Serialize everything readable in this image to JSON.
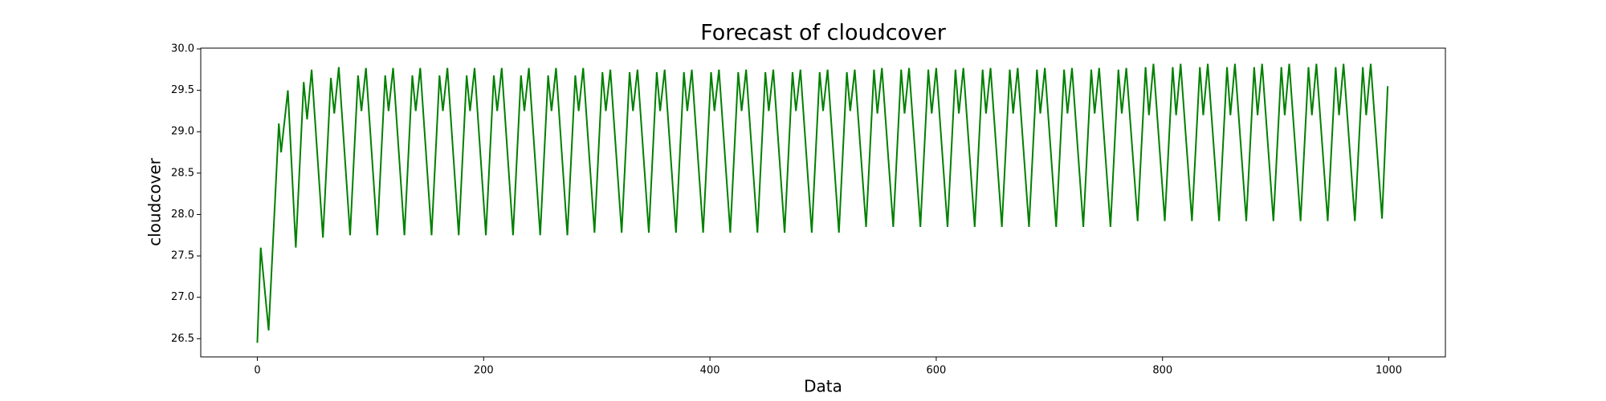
{
  "chart_data": {
    "type": "line",
    "title": "Forecast of cloudcover",
    "x_label": "Data",
    "y_label": "cloudcover",
    "xlim": [
      -50,
      1050
    ],
    "ylim": [
      26.28,
      30.01
    ],
    "xticks": [
      0,
      200,
      400,
      600,
      800,
      1000
    ],
    "yticks": [
      26.5,
      {
        "value": 27,
        "label": "27.0"
      },
      27.5,
      {
        "value": 28,
        "label": "28.0"
      },
      28.5,
      {
        "value": 29,
        "label": "29.0"
      },
      29.5,
      {
        "value": 30,
        "label": "30.0"
      }
    ],
    "x": [
      0,
      3,
      10,
      19,
      21,
      27,
      34,
      41,
      44,
      48,
      58,
      65,
      68,
      72,
      82,
      89,
      92,
      96,
      106,
      113,
      116,
      120,
      130,
      137,
      140,
      144,
      154,
      161,
      164,
      168,
      178,
      185,
      188,
      192,
      202,
      209,
      212,
      216,
      226,
      233,
      236,
      240,
      250,
      257,
      260,
      264,
      274,
      281,
      284,
      288,
      298,
      305,
      308,
      312,
      322,
      329,
      332,
      336,
      346,
      353,
      356,
      360,
      370,
      377,
      380,
      384,
      394,
      401,
      404,
      408,
      418,
      425,
      428,
      432,
      442,
      449,
      452,
      456,
      466,
      473,
      476,
      480,
      490,
      497,
      500,
      504,
      514,
      521,
      524,
      528,
      538,
      545,
      548,
      552,
      562,
      569,
      572,
      576,
      586,
      593,
      596,
      600,
      610,
      617,
      620,
      624,
      634,
      641,
      644,
      648,
      658,
      665,
      668,
      672,
      682,
      689,
      692,
      696,
      706,
      713,
      716,
      720,
      730,
      737,
      740,
      744,
      754,
      761,
      764,
      768,
      778,
      785,
      788,
      792,
      802,
      809,
      812,
      816,
      826,
      833,
      836,
      840,
      850,
      857,
      860,
      864,
      874,
      881,
      884,
      888,
      898,
      905,
      908,
      912,
      922,
      929,
      932,
      936,
      946,
      953,
      956,
      960,
      970,
      977,
      980,
      984,
      994,
      999
    ],
    "series": [
      {
        "name": "cloudcover",
        "color": "#008000",
        "values": [
          26.45,
          27.6,
          26.6,
          29.1,
          28.75,
          29.5,
          27.6,
          29.6,
          29.15,
          29.75,
          27.72,
          29.65,
          29.22,
          29.78,
          27.75,
          29.68,
          29.25,
          29.77,
          27.75,
          29.68,
          29.25,
          29.77,
          27.75,
          29.68,
          29.25,
          29.77,
          27.75,
          29.68,
          29.25,
          29.77,
          27.75,
          29.68,
          29.25,
          29.77,
          27.75,
          29.68,
          29.25,
          29.77,
          27.75,
          29.68,
          29.25,
          29.77,
          27.75,
          29.68,
          29.25,
          29.77,
          27.75,
          29.68,
          29.25,
          29.77,
          27.78,
          29.72,
          29.25,
          29.75,
          27.78,
          29.72,
          29.25,
          29.75,
          27.78,
          29.72,
          29.25,
          29.75,
          27.78,
          29.72,
          29.25,
          29.75,
          27.78,
          29.72,
          29.25,
          29.75,
          27.78,
          29.72,
          29.25,
          29.75,
          27.78,
          29.72,
          29.25,
          29.75,
          27.78,
          29.72,
          29.25,
          29.75,
          27.78,
          29.72,
          29.25,
          29.75,
          27.78,
          29.72,
          29.25,
          29.75,
          27.85,
          29.75,
          29.22,
          29.77,
          27.85,
          29.75,
          29.22,
          29.77,
          27.85,
          29.75,
          29.22,
          29.77,
          27.85,
          29.75,
          29.22,
          29.77,
          27.85,
          29.75,
          29.22,
          29.77,
          27.85,
          29.75,
          29.22,
          29.77,
          27.85,
          29.75,
          29.22,
          29.77,
          27.85,
          29.75,
          29.22,
          29.77,
          27.85,
          29.75,
          29.22,
          29.77,
          27.85,
          29.75,
          29.22,
          29.77,
          27.92,
          29.78,
          29.2,
          29.82,
          27.92,
          29.78,
          29.2,
          29.82,
          27.92,
          29.78,
          29.2,
          29.82,
          27.92,
          29.78,
          29.2,
          29.82,
          27.92,
          29.78,
          29.2,
          29.82,
          27.92,
          29.78,
          29.2,
          29.82,
          27.92,
          29.78,
          29.2,
          29.82,
          27.92,
          29.78,
          29.2,
          29.82,
          27.92,
          29.78,
          29.2,
          29.82,
          27.95,
          29.55
        ]
      }
    ]
  }
}
